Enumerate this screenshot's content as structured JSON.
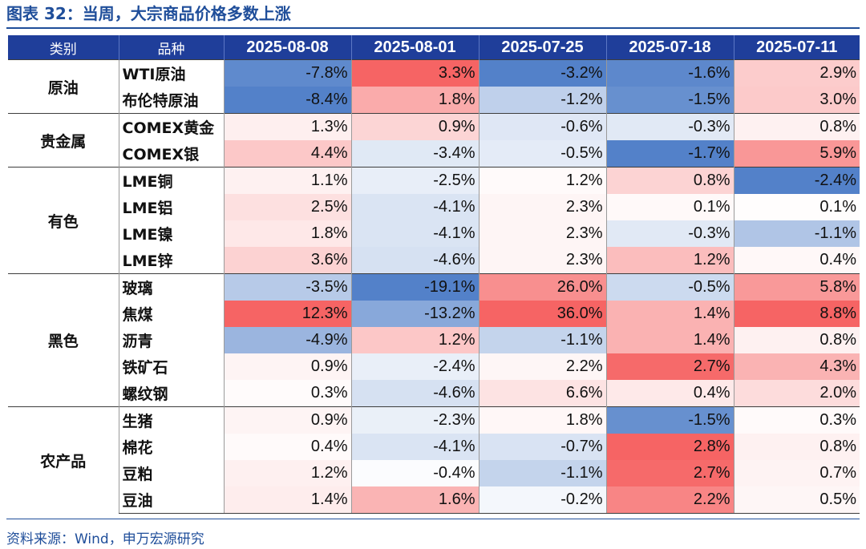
{
  "title": "图表 32：当周，大宗商品价格多数上涨",
  "header": {
    "category": "类别",
    "item": "品种",
    "dates": [
      "2025-08-08",
      "2025-08-01",
      "2025-07-25",
      "2025-07-18",
      "2025-07-11"
    ]
  },
  "colors": {
    "header_bg": "#1f3e9a",
    "title": "#1f4e9a",
    "negative": "#4a7ac6",
    "positive": "#f55c5c"
  },
  "groups": [
    {
      "name": "原油",
      "rows": [
        {
          "item": "WTI原油",
          "values": [
            "-7.8%",
            "3.3%",
            "-3.2%",
            "-1.6%",
            "2.9%"
          ]
        },
        {
          "item": "布伦特原油",
          "values": [
            "-8.4%",
            "1.8%",
            "-1.2%",
            "-1.5%",
            "3.0%"
          ]
        }
      ]
    },
    {
      "name": "贵金属",
      "rows": [
        {
          "item": "COMEX黄金",
          "values": [
            "1.3%",
            "0.9%",
            "-0.6%",
            "-0.3%",
            "0.8%"
          ]
        },
        {
          "item": "COMEX银",
          "values": [
            "4.4%",
            "-3.4%",
            "-0.5%",
            "-1.7%",
            "5.9%"
          ]
        }
      ]
    },
    {
      "name": "有色",
      "rows": [
        {
          "item": "LME铜",
          "values": [
            "1.1%",
            "-2.5%",
            "1.2%",
            "0.8%",
            "-2.4%"
          ]
        },
        {
          "item": "LME铝",
          "values": [
            "2.5%",
            "-4.1%",
            "2.3%",
            "0.1%",
            "0.1%"
          ]
        },
        {
          "item": "LME镍",
          "values": [
            "1.8%",
            "-4.1%",
            "2.3%",
            "-0.3%",
            "-1.1%"
          ]
        },
        {
          "item": "LME锌",
          "values": [
            "3.6%",
            "-4.6%",
            "2.3%",
            "1.2%",
            "0.4%"
          ]
        }
      ]
    },
    {
      "name": "黑色",
      "rows": [
        {
          "item": "玻璃",
          "values": [
            "-3.5%",
            "-19.1%",
            "26.0%",
            "-0.5%",
            "5.8%"
          ]
        },
        {
          "item": "焦煤",
          "values": [
            "12.3%",
            "-13.2%",
            "36.0%",
            "1.4%",
            "8.8%"
          ]
        },
        {
          "item": "沥青",
          "values": [
            "-4.9%",
            "1.2%",
            "-1.1%",
            "1.4%",
            "0.8%"
          ]
        },
        {
          "item": "铁矿石",
          "values": [
            "0.9%",
            "-2.4%",
            "2.2%",
            "2.7%",
            "4.3%"
          ]
        },
        {
          "item": "螺纹钢",
          "values": [
            "0.3%",
            "-4.6%",
            "6.6%",
            "0.4%",
            "2.0%"
          ]
        }
      ]
    },
    {
      "name": "农产品",
      "rows": [
        {
          "item": "生猪",
          "values": [
            "0.9%",
            "-2.3%",
            "1.8%",
            "-1.5%",
            "0.3%"
          ]
        },
        {
          "item": "棉花",
          "values": [
            "0.4%",
            "-4.1%",
            "-0.7%",
            "2.8%",
            "0.8%"
          ]
        },
        {
          "item": "豆粕",
          "values": [
            "1.2%",
            "-0.4%",
            "-1.1%",
            "2.7%",
            "0.7%"
          ]
        },
        {
          "item": "豆油",
          "values": [
            "1.4%",
            "1.6%",
            "-0.2%",
            "2.2%",
            "0.5%"
          ]
        }
      ]
    }
  ],
  "source": "资料来源：Wind，申万宏源研究"
}
